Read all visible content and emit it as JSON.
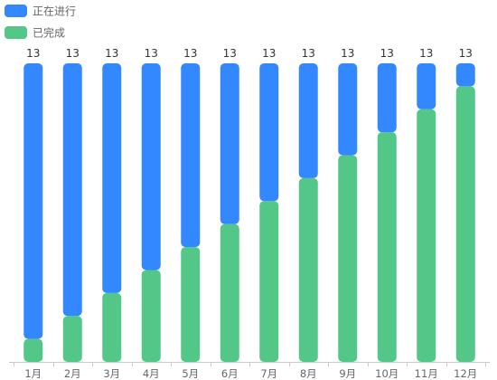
{
  "chart_data": {
    "type": "bar",
    "stacked": true,
    "categories": [
      "1月",
      "2月",
      "3月",
      "4月",
      "5月",
      "6月",
      "7月",
      "8月",
      "9月",
      "10月",
      "11月",
      "12月"
    ],
    "series": [
      {
        "name": "已完成",
        "color": "#52c787",
        "values": [
          1,
          2,
          3,
          4,
          5,
          6,
          7,
          8,
          9,
          10,
          11,
          12
        ]
      },
      {
        "name": "正在进行",
        "color": "#3388ff",
        "values": [
          12,
          11,
          10,
          9,
          8,
          7,
          6,
          5,
          4,
          3,
          2,
          1
        ]
      }
    ],
    "totals": [
      13,
      13,
      13,
      13,
      13,
      13,
      13,
      13,
      13,
      13,
      13,
      13
    ],
    "legend": {
      "position": "top-left",
      "items": [
        "正在进行",
        "已完成"
      ]
    },
    "ylim": [
      0,
      13
    ],
    "grid": false
  }
}
